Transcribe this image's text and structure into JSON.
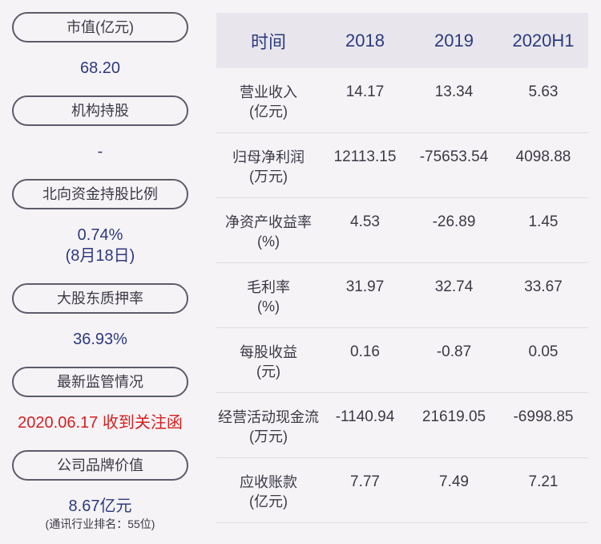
{
  "left": {
    "market_cap": {
      "label": "市值(亿元)",
      "value": "68.20"
    },
    "institution": {
      "label": "机构持股",
      "value": "-"
    },
    "northbound": {
      "label": "北向资金持股比例",
      "value": "0.74%",
      "date": "(8月18日)"
    },
    "pledge": {
      "label": "大股东质押率",
      "value": "36.93%"
    },
    "regulation": {
      "label": "最新监管情况",
      "value": "2020.06.17 收到关注函"
    },
    "brand": {
      "label": "公司品牌价值",
      "value": "8.67亿元",
      "rank": "(通讯行业排名：55位)"
    }
  },
  "table": {
    "headers": [
      "时间",
      "2018",
      "2019",
      "2020H1"
    ],
    "rows": [
      {
        "label1": "营业收入",
        "label2": "(亿元)",
        "values": [
          "14.17",
          "13.34",
          "5.63"
        ]
      },
      {
        "label1": "归母净利润",
        "label2": "(万元)",
        "values": [
          "12113.15",
          "-75653.54",
          "4098.88"
        ]
      },
      {
        "label1": "净资产收益率",
        "label2": "(%)",
        "values": [
          "4.53",
          "-26.89",
          "1.45"
        ]
      },
      {
        "label1": "毛利率",
        "label2": "(%)",
        "values": [
          "31.97",
          "32.74",
          "33.67"
        ]
      },
      {
        "label1": "每股收益",
        "label2": "(元)",
        "values": [
          "0.16",
          "-0.87",
          "0.05"
        ]
      },
      {
        "label1": "经营活动现金流",
        "label2": "(万元)",
        "values": [
          "-1140.94",
          "21619.05",
          "-6998.85"
        ]
      },
      {
        "label1": "应收账款",
        "label2": "(亿元)",
        "values": [
          "7.77",
          "7.49",
          "7.21"
        ]
      }
    ]
  }
}
